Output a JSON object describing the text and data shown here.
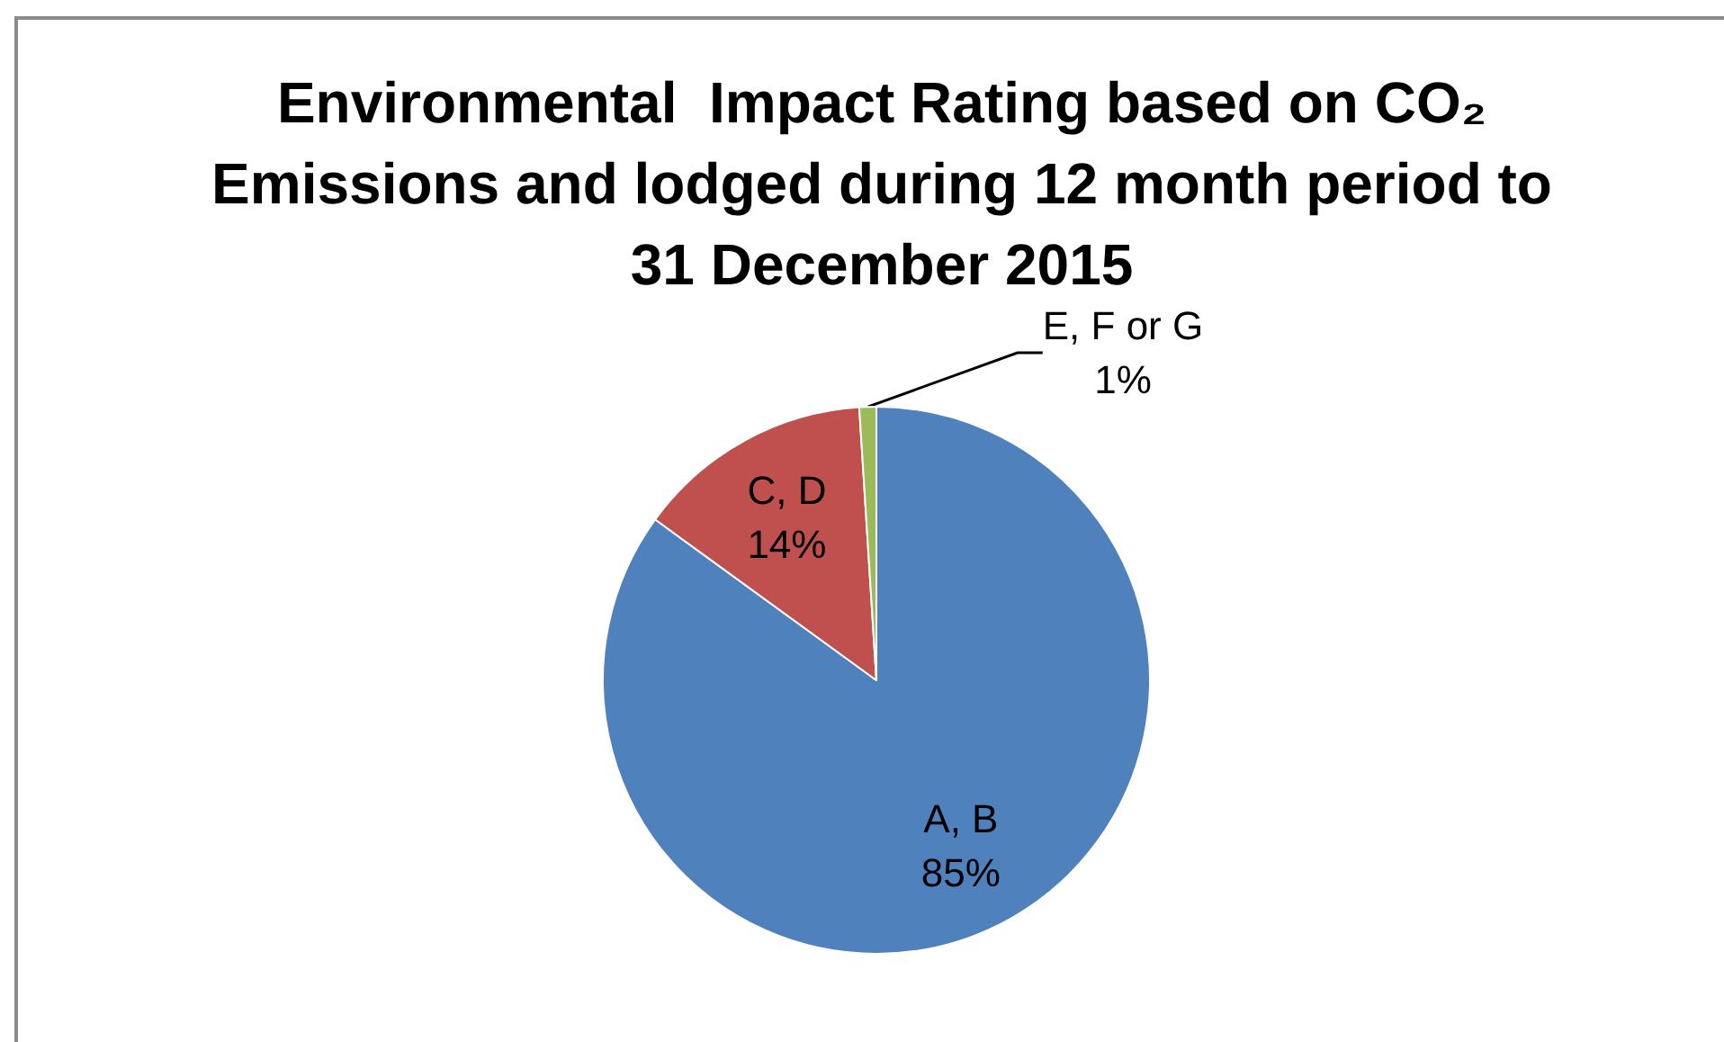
{
  "chart_data": {
    "type": "pie",
    "title": "Environmental  Impact Rating based on CO₂ Emissions and lodged during 12 month period to 31 December 2015",
    "categories": [
      "A, B",
      "C, D",
      "E, F or G"
    ],
    "values": [
      85,
      14,
      1
    ],
    "colors": [
      "#4f81bd",
      "#c0504d",
      "#9bbb59"
    ],
    "value_labels": [
      "85%",
      "14%",
      "1%"
    ],
    "legend": false
  }
}
